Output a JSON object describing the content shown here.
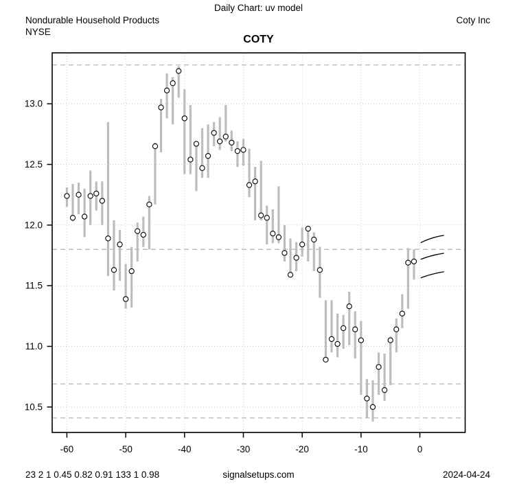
{
  "header": {
    "chart_type": "Daily Chart: uv model",
    "industry": "Nondurable Household Products",
    "exchange": "NYSE",
    "company": "Coty Inc",
    "symbol": "COTY"
  },
  "footer": {
    "stats": "23 2 1 0.45 0.82 0.91 133 1 0.98",
    "website": "signalsetups.com",
    "date": "2024-04-24"
  },
  "chart_data": {
    "type": "bar",
    "subtype": "high-low-close price bars with close circles",
    "title": "COTY",
    "xlabel": "",
    "ylabel": "",
    "xlim": [
      -62.5,
      7.7
    ],
    "ylim": [
      10.29,
      13.42
    ],
    "x_ticks": [
      -60,
      -50,
      -40,
      -30,
      -20,
      -10,
      0
    ],
    "y_ticks": [
      10.5,
      11.0,
      11.5,
      12.0,
      12.5,
      13.0
    ],
    "grid": "dotted",
    "dashed_levels": [
      13.32,
      11.8,
      10.69,
      10.41
    ],
    "colors": {
      "bar": "#bdbdbd",
      "grid": "#c9c9c9",
      "dashed": "#b0b0b0",
      "curve": "#000000",
      "marker_fill": "#ffffff",
      "marker_stroke": "#000000",
      "axis": "#000000"
    },
    "bars": [
      {
        "t": -60,
        "high": 12.31,
        "low": 12.15,
        "close": 12.24
      },
      {
        "t": -59,
        "high": 12.34,
        "low": 12.03,
        "close": 12.06
      },
      {
        "t": -58,
        "high": 12.35,
        "low": 12.09,
        "close": 12.25
      },
      {
        "t": -57,
        "high": 12.3,
        "low": 11.9,
        "close": 12.07
      },
      {
        "t": -56,
        "high": 12.45,
        "low": 12.0,
        "close": 12.24
      },
      {
        "t": -55,
        "high": 12.36,
        "low": 12.12,
        "close": 12.26
      },
      {
        "t": -54,
        "high": 12.36,
        "low": 12.0,
        "close": 12.2
      },
      {
        "t": -53,
        "high": 12.85,
        "low": 11.58,
        "close": 11.89
      },
      {
        "t": -52,
        "high": 12.04,
        "low": 11.46,
        "close": 11.63
      },
      {
        "t": -51,
        "high": 11.96,
        "low": 11.54,
        "close": 11.84
      },
      {
        "t": -50,
        "high": 11.68,
        "low": 11.31,
        "close": 11.39
      },
      {
        "t": -49,
        "high": 11.82,
        "low": 11.32,
        "close": 11.62
      },
      {
        "t": -48,
        "high": 12.02,
        "low": 11.7,
        "close": 11.95
      },
      {
        "t": -47,
        "high": 12.07,
        "low": 11.82,
        "close": 11.92
      },
      {
        "t": -46,
        "high": 12.24,
        "low": 11.8,
        "close": 12.17
      },
      {
        "t": -45,
        "high": 12.68,
        "low": 12.17,
        "close": 12.65
      },
      {
        "t": -44,
        "high": 13.04,
        "low": 12.6,
        "close": 12.97
      },
      {
        "t": -43,
        "high": 13.25,
        "low": 12.88,
        "close": 13.11
      },
      {
        "t": -42,
        "high": 13.22,
        "low": 12.83,
        "close": 13.17
      },
      {
        "t": -41,
        "high": 13.31,
        "low": 13.05,
        "close": 13.27
      },
      {
        "t": -40,
        "high": 13.12,
        "low": 12.42,
        "close": 12.88
      },
      {
        "t": -39,
        "high": 12.99,
        "low": 12.42,
        "close": 12.54
      },
      {
        "t": -38,
        "high": 12.69,
        "low": 12.28,
        "close": 12.67
      },
      {
        "t": -37,
        "high": 12.8,
        "low": 12.39,
        "close": 12.47
      },
      {
        "t": -36,
        "high": 12.83,
        "low": 12.39,
        "close": 12.57
      },
      {
        "t": -35,
        "high": 12.85,
        "low": 12.65,
        "close": 12.76
      },
      {
        "t": -34,
        "high": 12.89,
        "low": 12.62,
        "close": 12.69
      },
      {
        "t": -33,
        "high": 12.99,
        "low": 12.69,
        "close": 12.73
      },
      {
        "t": -32,
        "high": 12.78,
        "low": 12.61,
        "close": 12.68
      },
      {
        "t": -31,
        "high": 12.69,
        "low": 12.48,
        "close": 12.61
      },
      {
        "t": -30,
        "high": 12.71,
        "low": 12.49,
        "close": 12.62
      },
      {
        "t": -29,
        "high": 12.63,
        "low": 12.23,
        "close": 12.33
      },
      {
        "t": -28,
        "high": 12.48,
        "low": 12.04,
        "close": 12.36
      },
      {
        "t": -27,
        "high": 12.53,
        "low": 12.04,
        "close": 12.08
      },
      {
        "t": -26,
        "high": 12.16,
        "low": 11.84,
        "close": 12.06
      },
      {
        "t": -25,
        "high": 12.13,
        "low": 11.85,
        "close": 11.93
      },
      {
        "t": -24,
        "high": 12.32,
        "low": 11.85,
        "close": 11.9
      },
      {
        "t": -23,
        "high": 12.0,
        "low": 11.7,
        "close": 11.77
      },
      {
        "t": -22,
        "high": 11.89,
        "low": 11.57,
        "close": 11.59
      },
      {
        "t": -21,
        "high": 11.86,
        "low": 11.62,
        "close": 11.73
      },
      {
        "t": -20,
        "high": 11.98,
        "low": 11.74,
        "close": 11.84
      },
      {
        "t": -19,
        "high": 11.99,
        "low": 11.7,
        "close": 11.97
      },
      {
        "t": -18,
        "high": 11.94,
        "low": 11.62,
        "close": 11.88
      },
      {
        "t": -17,
        "high": 11.82,
        "low": 11.4,
        "close": 11.63
      },
      {
        "t": -16,
        "high": 11.38,
        "low": 10.87,
        "close": 10.89
      },
      {
        "t": -15,
        "high": 11.38,
        "low": 10.95,
        "close": 11.06
      },
      {
        "t": -14,
        "high": 11.27,
        "low": 10.91,
        "close": 11.02
      },
      {
        "t": -13,
        "high": 11.26,
        "low": 10.98,
        "close": 11.15
      },
      {
        "t": -12,
        "high": 11.45,
        "low": 11.01,
        "close": 11.33
      },
      {
        "t": -11,
        "high": 11.29,
        "low": 10.9,
        "close": 11.14
      },
      {
        "t": -10,
        "high": 11.21,
        "low": 10.6,
        "close": 11.05
      },
      {
        "t": -9,
        "high": 10.73,
        "low": 10.41,
        "close": 10.57
      },
      {
        "t": -8,
        "high": 10.72,
        "low": 10.38,
        "close": 10.5
      },
      {
        "t": -7,
        "high": 10.95,
        "low": 10.6,
        "close": 10.83
      },
      {
        "t": -6,
        "high": 10.94,
        "low": 10.55,
        "close": 10.64
      },
      {
        "t": -5,
        "high": 11.08,
        "low": 10.68,
        "close": 11.05
      },
      {
        "t": -4,
        "high": 11.23,
        "low": 10.95,
        "close": 11.14
      },
      {
        "t": -3,
        "high": 11.43,
        "low": 11.15,
        "close": 11.27
      },
      {
        "t": -2,
        "high": 11.81,
        "low": 11.31,
        "close": 11.69
      },
      {
        "t": -1,
        "high": 11.8,
        "low": 11.55,
        "close": 11.7
      }
    ],
    "forecast_curves": [
      [
        [
          0.15,
          11.855
        ],
        [
          2.1,
          11.893
        ],
        [
          4.1,
          11.915
        ]
      ],
      [
        [
          0.15,
          11.718
        ],
        [
          2.1,
          11.748
        ],
        [
          4.1,
          11.768
        ]
      ],
      [
        [
          0.15,
          11.565
        ],
        [
          2.1,
          11.595
        ],
        [
          4.1,
          11.615
        ]
      ]
    ],
    "legend": null
  }
}
